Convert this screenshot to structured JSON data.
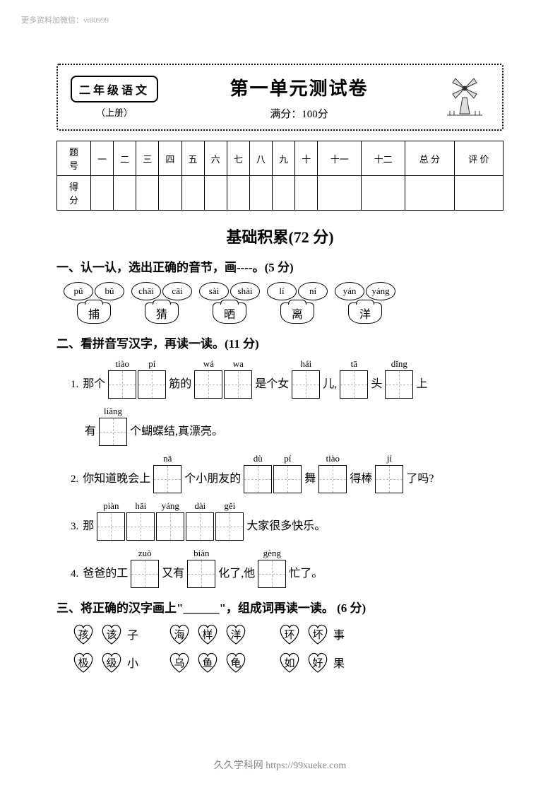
{
  "watermark": "更多资料加微信：vt80999",
  "header": {
    "grade": "二年级语文",
    "volume": "（上册）",
    "title": "第一单元测试卷",
    "full_score": "满分：100分"
  },
  "score_table": {
    "row1_label": "题 号",
    "row2_label": "得 分",
    "cols": [
      "一",
      "二",
      "三",
      "四",
      "五",
      "六",
      "七",
      "八",
      "九",
      "十",
      "十一",
      "十二",
      "总 分",
      "评 价"
    ]
  },
  "section_heading": "基础积累(72 分)",
  "q1": {
    "title": "一、认一认，选出正确的音节，画----。(5 分)",
    "pairs": [
      {
        "p": [
          "pǔ",
          "bǔ"
        ],
        "char": "捕"
      },
      {
        "p": [
          "chāi",
          "cāi"
        ],
        "char": "猜"
      },
      {
        "p": [
          "sài",
          "shài"
        ],
        "char": "晒"
      },
      {
        "p": [
          "lí",
          "ní"
        ],
        "char": "离"
      },
      {
        "p": [
          "yán",
          "yáng"
        ],
        "char": "洋"
      }
    ]
  },
  "q2": {
    "title": "二、看拼音写汉字，再读一读。(11 分)",
    "line1": {
      "num": "1.",
      "parts": [
        {
          "t": "那个"
        },
        {
          "box": true,
          "py": "tiào"
        },
        {
          "box": true,
          "py": "pí"
        },
        {
          "t": "筋的"
        },
        {
          "box": true,
          "py": "wá"
        },
        {
          "box": true,
          "py": "wa"
        },
        {
          "t": "是个女"
        },
        {
          "box": true,
          "py": "hái"
        },
        {
          "t": "儿,"
        },
        {
          "box": true,
          "py": "tā"
        },
        {
          "t": "头"
        },
        {
          "box": true,
          "py": "dǐng"
        },
        {
          "t": "上"
        }
      ]
    },
    "line1b": {
      "parts": [
        {
          "t": "有"
        },
        {
          "box": true,
          "py": "liǎng"
        },
        {
          "t": "个蝴蝶结,真漂亮。"
        }
      ]
    },
    "line2": {
      "num": "2.",
      "parts": [
        {
          "t": "你知道晚会上"
        },
        {
          "box": true,
          "py": "nǎ"
        },
        {
          "t": "个小朋友的"
        },
        {
          "box": true,
          "py": "dù"
        },
        {
          "box": true,
          "py": "pí"
        },
        {
          "t": "舞"
        },
        {
          "box": true,
          "py": "tiào"
        },
        {
          "t": "得棒"
        },
        {
          "box": true,
          "py": "jí"
        },
        {
          "t": "了吗?"
        }
      ]
    },
    "line3": {
      "num": "3.",
      "parts": [
        {
          "t": "那"
        },
        {
          "box": true,
          "py": "piàn"
        },
        {
          "box": true,
          "py": "hǎi"
        },
        {
          "box": true,
          "py": "yáng"
        },
        {
          "box": true,
          "py": "dài"
        },
        {
          "box": true,
          "py": "gěi"
        },
        {
          "t": "大家很多快乐。"
        }
      ]
    },
    "line4": {
      "num": "4.",
      "parts": [
        {
          "t": "爸爸的工"
        },
        {
          "box": true,
          "py": "zuò"
        },
        {
          "t": "又有"
        },
        {
          "box": true,
          "py": "biàn"
        },
        {
          "t": "化了,他"
        },
        {
          "box": true,
          "py": "gèng"
        },
        {
          "t": "忙了。"
        }
      ]
    }
  },
  "q3": {
    "title": "三、将正确的汉字画上\"______\"，组成词再读一读。 (6 分)",
    "rows": [
      [
        {
          "h": [
            "孩",
            "该"
          ],
          "suf": "子"
        },
        {
          "h": [
            "海",
            "样",
            "洋"
          ],
          "suf": ""
        },
        {
          "h": [
            "环",
            "坏"
          ],
          "suf": "事"
        }
      ],
      [
        {
          "h": [
            "极",
            "级"
          ],
          "suf": "小"
        },
        {
          "h": [
            "乌",
            "鱼",
            "龟"
          ],
          "suf": ""
        },
        {
          "h": [
            "如",
            "好"
          ],
          "suf": "果"
        }
      ]
    ]
  },
  "footer": "久久学科网 https://99xueke.com"
}
